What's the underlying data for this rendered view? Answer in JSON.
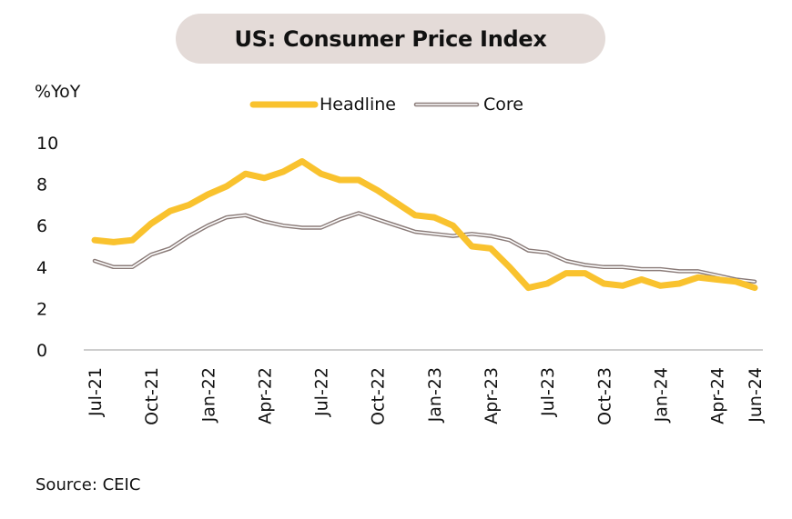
{
  "chart_data": {
    "type": "line",
    "title": "US: Consumer Price Index",
    "ylabel": "%YoY",
    "source": "Source: CEIC",
    "ylim": [
      0,
      10
    ],
    "yticks": [
      0,
      2,
      4,
      6,
      8,
      10
    ],
    "grid": false,
    "legend_position": "top",
    "x": [
      "Jul-21",
      "Aug-21",
      "Sep-21",
      "Oct-21",
      "Nov-21",
      "Dec-21",
      "Jan-22",
      "Feb-22",
      "Mar-22",
      "Apr-22",
      "May-22",
      "Jun-22",
      "Jul-22",
      "Aug-22",
      "Sep-22",
      "Oct-22",
      "Nov-22",
      "Dec-22",
      "Jan-23",
      "Feb-23",
      "Mar-23",
      "Apr-23",
      "May-23",
      "Jun-23",
      "Jul-23",
      "Aug-23",
      "Sep-23",
      "Oct-23",
      "Nov-23",
      "Dec-23",
      "Jan-24",
      "Feb-24",
      "Mar-24",
      "Apr-24",
      "May-24",
      "Jun-24"
    ],
    "xticks": [
      "Jul-21",
      "Oct-21",
      "Jan-22",
      "Apr-22",
      "Jul-22",
      "Oct-22",
      "Jan-23",
      "Apr-23",
      "Jul-23",
      "Oct-23",
      "Jan-24",
      "Apr-24",
      "Jun-24"
    ],
    "series": [
      {
        "name": "Headline",
        "color": "#f9c22e",
        "values": [
          5.3,
          5.2,
          5.3,
          6.1,
          6.7,
          7.0,
          7.5,
          7.9,
          8.5,
          8.3,
          8.6,
          9.1,
          8.5,
          8.2,
          8.2,
          7.7,
          7.1,
          6.5,
          6.4,
          6.0,
          5.0,
          4.9,
          4.0,
          3.0,
          3.2,
          3.7,
          3.7,
          3.2,
          3.1,
          3.4,
          3.1,
          3.2,
          3.5,
          3.4,
          3.3,
          3.0
        ]
      },
      {
        "name": "Core",
        "color": "#8a7b78",
        "values": [
          4.3,
          4.0,
          4.0,
          4.6,
          4.9,
          5.5,
          6.0,
          6.4,
          6.5,
          6.2,
          6.0,
          5.9,
          5.9,
          6.3,
          6.6,
          6.3,
          6.0,
          5.7,
          5.6,
          5.5,
          5.6,
          5.5,
          5.3,
          4.8,
          4.7,
          4.3,
          4.1,
          4.0,
          4.0,
          3.9,
          3.9,
          3.8,
          3.8,
          3.6,
          3.4,
          3.3
        ]
      }
    ]
  }
}
